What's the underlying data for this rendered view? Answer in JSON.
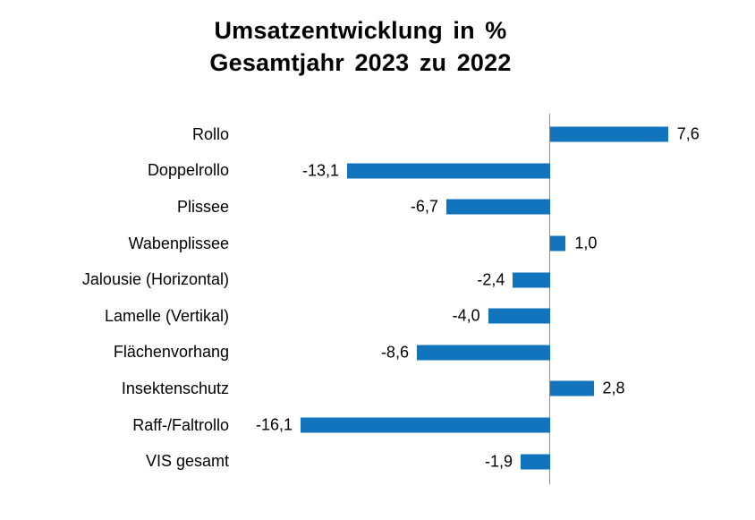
{
  "title": {
    "line1": "Umsatzentwicklung in %",
    "line2": "Gesamtjahr 2023 zu 2022"
  },
  "colors": {
    "bar": "#1274bd",
    "axis": "#8c8c8c",
    "text": "#000000",
    "background": "#ffffff"
  },
  "chart_data": {
    "type": "bar",
    "orientation": "horizontal",
    "title": "Umsatzentwicklung in % Gesamtjahr 2023 zu 2022",
    "xlabel": "",
    "ylabel": "",
    "categories": [
      "Rollo",
      "Doppelrollo",
      "Plissee",
      "Wabenplissee",
      "Jalousie (Horizontal)",
      "Lamelle (Vertikal)",
      "Flächenvorhang",
      "Insektenschutz",
      "Raff-/Faltrollo",
      "VIS gesamt"
    ],
    "values": [
      7.6,
      -13.1,
      -6.7,
      1.0,
      -2.4,
      -4.0,
      -8.6,
      2.8,
      -16.1,
      -1.9
    ],
    "value_labels": [
      "7,6",
      "-13,1",
      "-6,7",
      "1,0",
      "-2,4",
      "-4,0",
      "-8,6",
      "2,8",
      "-16,1",
      "-1,9"
    ],
    "baseline": 0,
    "xlim": [
      -20.7,
      13.2
    ],
    "grid": false,
    "legend": false,
    "data_labels": true
  }
}
